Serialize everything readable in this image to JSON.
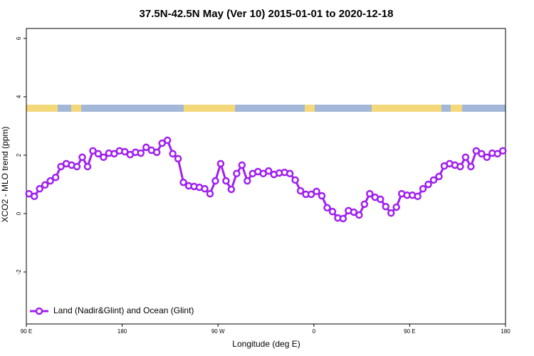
{
  "chart_data": {
    "type": "line",
    "title": "37.5N-42.5N May (Ver 10)   2015-01-01 to 2020-12-18",
    "x_label": "Longitude (deg E)",
    "y_label": "XCO2 - MLO trend (ppm)",
    "xlim": [
      90,
      540
    ],
    "xticks": [
      {
        "value": 90,
        "label": "90 E"
      },
      180,
      {
        "value": 270,
        "label": "90 W"
      },
      {
        "value": 360,
        "label": "0"
      },
      {
        "value": 450,
        "label": "90 E"
      },
      {
        "value": 540,
        "label": "180"
      }
    ],
    "ylim": [
      -3.78,
      6.34
    ],
    "yticks": [
      -2,
      0,
      2,
      4,
      6
    ],
    "grid": false,
    "legend": "bottom-left",
    "x": [
      92.5,
      97.5,
      102.5,
      107.5,
      112.5,
      117.5,
      122.5,
      127.5,
      132.5,
      137.5,
      142.5,
      147.5,
      152.5,
      157.5,
      162.5,
      167.5,
      172.5,
      177.5,
      182.5,
      187.5,
      192.5,
      197.5,
      202.5,
      207.5,
      212.5,
      217.5,
      222.5,
      227.5,
      232.5,
      237.5,
      242.5,
      247.5,
      252.5,
      257.5,
      262.5,
      267.5,
      272.5,
      277.5,
      282.5,
      287.5,
      292.5,
      297.5,
      302.5,
      307.5,
      312.5,
      317.5,
      322.5,
      327.5,
      332.5,
      337.5,
      342.5,
      347.5,
      352.5,
      357.5,
      362.5,
      367.5,
      372.5,
      377.5,
      382.5,
      387.5,
      392.5,
      397.5,
      402.5,
      407.5,
      412.5,
      417.5,
      422.5,
      427.5,
      432.5,
      437.5,
      442.5,
      447.5,
      452.5,
      457.5,
      462.5,
      467.5,
      472.5,
      477.5,
      482.5,
      487.5,
      492.5,
      497.5,
      502.5,
      507.5,
      512.5,
      517.5,
      522.5,
      527.5,
      532.5,
      537.5
    ],
    "series": [
      {
        "name": "Land (Nadir&Glint) and Ocean (Glint)",
        "color": "#a020f0",
        "values": [
          0.68,
          0.59,
          0.85,
          0.98,
          1.12,
          1.24,
          1.61,
          1.71,
          1.66,
          1.61,
          1.93,
          1.61,
          2.15,
          2.05,
          1.93,
          2.07,
          2.05,
          2.15,
          2.12,
          2.02,
          2.1,
          2.07,
          2.27,
          2.17,
          2.1,
          2.41,
          2.51,
          2.05,
          1.88,
          1.07,
          0.95,
          0.93,
          0.9,
          0.85,
          0.68,
          1.12,
          1.71,
          1.12,
          0.83,
          1.37,
          1.66,
          1.12,
          1.37,
          1.44,
          1.37,
          1.46,
          1.34,
          1.39,
          1.41,
          1.37,
          1.15,
          0.78,
          0.66,
          0.66,
          0.76,
          0.61,
          0.2,
          0.07,
          -0.15,
          -0.17,
          0.1,
          0.05,
          -0.05,
          0.32,
          0.68,
          0.56,
          0.49,
          0.24,
          0.02,
          0.22,
          0.68,
          0.63,
          0.63,
          0.59,
          0.85,
          1.0,
          1.15,
          1.27,
          1.63,
          1.71,
          1.66,
          1.61,
          1.93,
          1.61,
          2.15,
          2.05,
          1.93,
          2.07,
          2.05,
          2.15
        ]
      }
    ]
  }
}
